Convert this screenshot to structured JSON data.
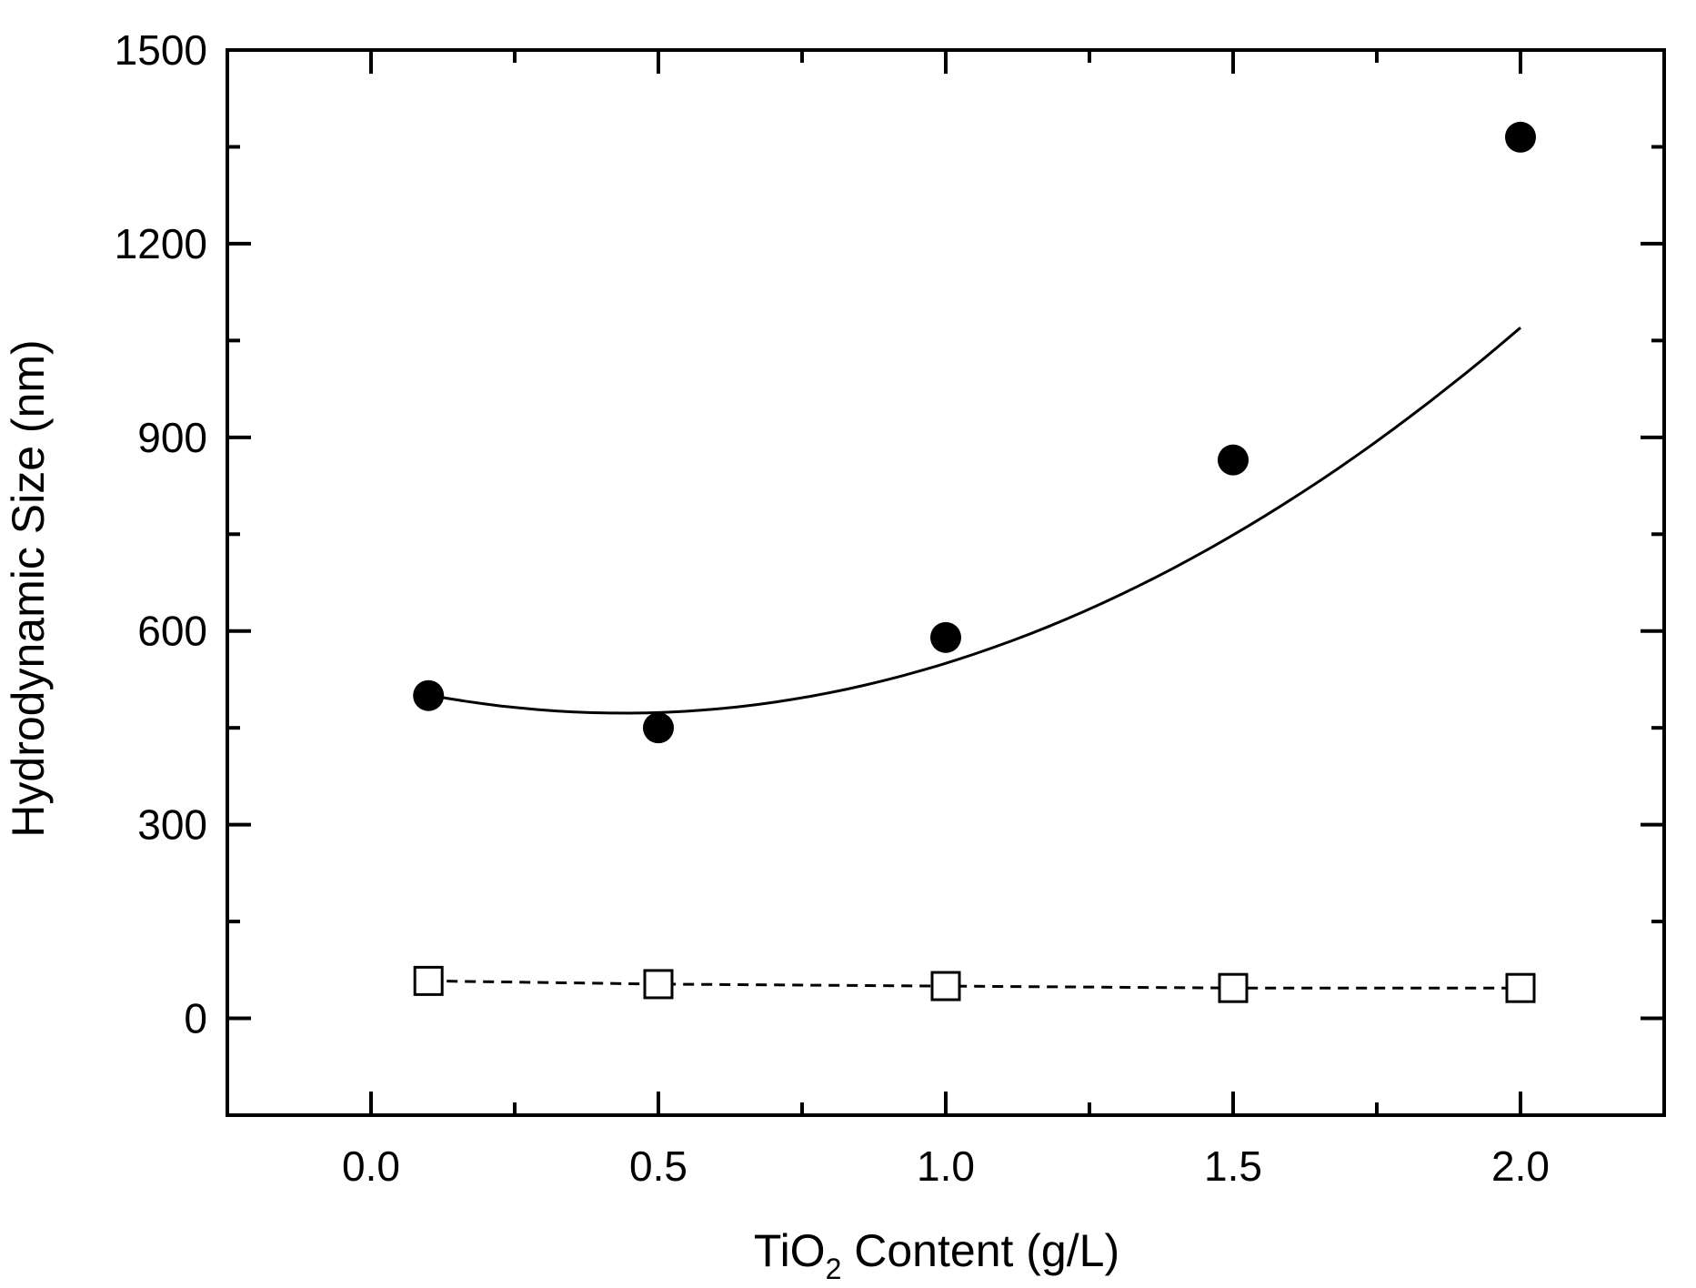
{
  "chart_data": {
    "type": "scatter",
    "x_axis": {
      "label_main": "TiO",
      "label_subscript": "2",
      "label_rest": " Content (g/L)",
      "range": [
        -0.25,
        2.25
      ],
      "ticks": [
        0.0,
        0.5,
        1.0,
        1.5,
        2.0
      ],
      "tick_labels": [
        "0.0",
        "0.5",
        "1.0",
        "1.5",
        "2.0"
      ],
      "minor_ticks": [
        0.25,
        0.75,
        1.25,
        1.75
      ]
    },
    "y_axis": {
      "label": "Hydrodynamic Size (nm)",
      "range": [
        -150,
        1500
      ],
      "ticks": [
        0,
        300,
        600,
        900,
        1200,
        1500
      ],
      "tick_labels": [
        "0",
        "300",
        "600",
        "900",
        "1200",
        "1500"
      ],
      "minor_ticks": [
        -150,
        150,
        450,
        750,
        1050,
        1350
      ]
    },
    "grid": false,
    "legend": "none",
    "series": [
      {
        "marker": "filled-circle",
        "color": "#000000",
        "x": [
          0.1,
          0.5,
          1.0,
          1.5,
          2.0
        ],
        "y": [
          500,
          450,
          590,
          865,
          1365
        ],
        "fit": {
          "style": "solid",
          "kind": "quadratic",
          "coeffs": [
            520,
            -215,
            245
          ]
        }
      },
      {
        "marker": "open-square",
        "color": "#000000",
        "x": [
          0.1,
          0.5,
          1.0,
          1.5,
          2.0
        ],
        "y": [
          58,
          53,
          50,
          47,
          47
        ],
        "fit": {
          "style": "dashed",
          "kind": "linear"
        }
      }
    ]
  }
}
